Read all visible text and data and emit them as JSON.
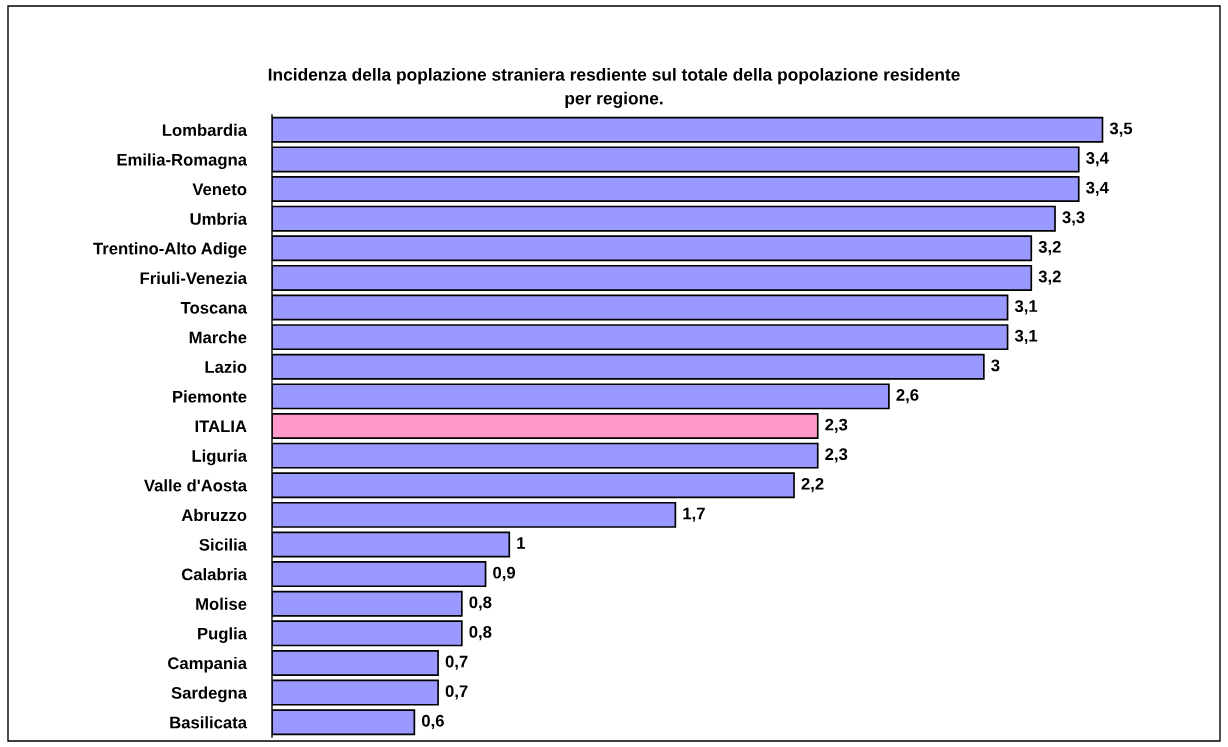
{
  "chart_data": {
    "type": "bar",
    "orientation": "horizontal",
    "title": "Incidenza della poplazione straniera resdiente sul totale della popolazione residente\nper regione.",
    "categories": [
      "Lombardia",
      "Emilia-Romagna",
      "Veneto",
      "Umbria",
      "Trentino-Alto Adige",
      "Friuli-Venezia",
      "Toscana",
      "Marche",
      "Lazio",
      "Piemonte",
      "ITALIA",
      "Liguria",
      "Valle d'Aosta",
      "Abruzzo",
      "Sicilia",
      "Calabria",
      "Molise",
      "Puglia",
      "Campania",
      "Sardegna",
      "Basilicata"
    ],
    "values": [
      3.5,
      3.4,
      3.4,
      3.3,
      3.2,
      3.2,
      3.1,
      3.1,
      3,
      2.6,
      2.3,
      2.3,
      2.2,
      1.7,
      1,
      0.9,
      0.8,
      0.8,
      0.7,
      0.7,
      0.6
    ],
    "value_labels": [
      "3,5",
      "3,4",
      "3,4",
      "3,3",
      "3,2",
      "3,2",
      "3,1",
      "3,1",
      "3",
      "2,6",
      "2,3",
      "2,3",
      "2,2",
      "1,7",
      "1",
      "0,9",
      "0,8",
      "0,8",
      "0,7",
      "0,7",
      "0,6"
    ],
    "colors": [
      "#9999ff",
      "#9999ff",
      "#9999ff",
      "#9999ff",
      "#9999ff",
      "#9999ff",
      "#9999ff",
      "#9999ff",
      "#9999ff",
      "#9999ff",
      "#ff99cc",
      "#9999ff",
      "#9999ff",
      "#9999ff",
      "#9999ff",
      "#9999ff",
      "#9999ff",
      "#9999ff",
      "#9999ff",
      "#9999ff",
      "#9999ff"
    ],
    "tick_labels": "y",
    "grid": false,
    "legend": false
  }
}
